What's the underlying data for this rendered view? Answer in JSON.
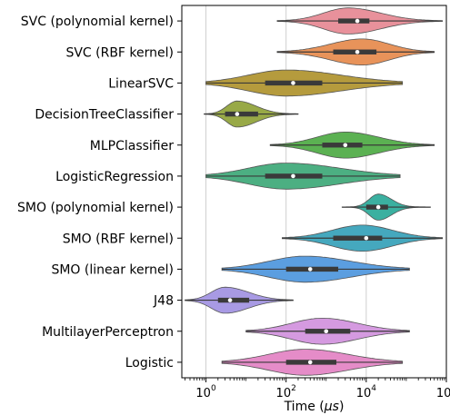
{
  "chart_data": {
    "type": "violin",
    "orientation": "horizontal",
    "x_scale": "log10",
    "xlabel_main": "Time (",
    "xlabel_unit": "μs",
    "xlabel_close": ")",
    "xlim": [
      0.25,
      1000000
    ],
    "x_ticks": [
      {
        "value": 1,
        "base": "10",
        "exp": "0"
      },
      {
        "value": 100,
        "base": "10",
        "exp": "2"
      },
      {
        "value": 10000,
        "base": "10",
        "exp": "4"
      },
      {
        "value": 1000000,
        "base": "10",
        "exp": "6"
      }
    ],
    "grid_x": true,
    "series": [
      {
        "name": "SVC (polynomial kernel)",
        "color": "#e8919b",
        "min": 60,
        "q1": 2000,
        "median": 6000,
        "q3": 12000,
        "max": 800000,
        "peak": 3500,
        "spread": 0.55
      },
      {
        "name": "SVC (RBF kernel)",
        "color": "#e8935a",
        "min": 60,
        "q1": 1500,
        "median": 6000,
        "q3": 18000,
        "max": 500000,
        "peak": 8000,
        "spread": 0.6
      },
      {
        "name": "LinearSVC",
        "color": "#b59b3d",
        "min": 1,
        "q1": 30,
        "median": 150,
        "q3": 800,
        "max": 80000,
        "peak": 100,
        "spread": 0.75
      },
      {
        "name": "DecisionTreeClassifier",
        "color": "#98a947",
        "min": 0.9,
        "q1": 3,
        "median": 6,
        "q3": 20,
        "max": 200,
        "peak": 6,
        "spread": 0.5
      },
      {
        "name": "MLPClassifier",
        "color": "#5bb152",
        "min": 40,
        "q1": 800,
        "median": 3000,
        "q3": 8000,
        "max": 500000,
        "peak": 3000,
        "spread": 0.6
      },
      {
        "name": "LogisticRegression",
        "color": "#4caf82",
        "min": 1,
        "q1": 30,
        "median": 150,
        "q3": 800,
        "max": 70000,
        "peak": 100,
        "spread": 0.75
      },
      {
        "name": "SMO (polynomial kernel)",
        "color": "#3bb0a0",
        "min": 2500,
        "q1": 10000,
        "median": 20000,
        "q3": 35000,
        "max": 400000,
        "peak": 20000,
        "spread": 0.4
      },
      {
        "name": "SMO (RBF kernel)",
        "color": "#45a8be",
        "min": 80,
        "q1": 1500,
        "median": 10000,
        "q3": 25000,
        "max": 800000,
        "peak": 8000,
        "spread": 0.6
      },
      {
        "name": "SMO (linear kernel)",
        "color": "#5b9ee0",
        "min": 2.5,
        "q1": 100,
        "median": 400,
        "q3": 2000,
        "max": 120000,
        "peak": 300,
        "spread": 0.7
      },
      {
        "name": "J48",
        "color": "#a89ae4",
        "min": 0.3,
        "q1": 2,
        "median": 4,
        "q3": 12,
        "max": 150,
        "peak": 3,
        "spread": 0.55
      },
      {
        "name": "MultilayerPerceptron",
        "color": "#d59ae0",
        "min": 10,
        "q1": 300,
        "median": 1000,
        "q3": 4000,
        "max": 120000,
        "peak": 800,
        "spread": 0.65
      },
      {
        "name": "Logistic",
        "color": "#e58cc8",
        "min": 2.5,
        "q1": 100,
        "median": 400,
        "q3": 1800,
        "max": 80000,
        "peak": 300,
        "spread": 0.7
      }
    ]
  }
}
